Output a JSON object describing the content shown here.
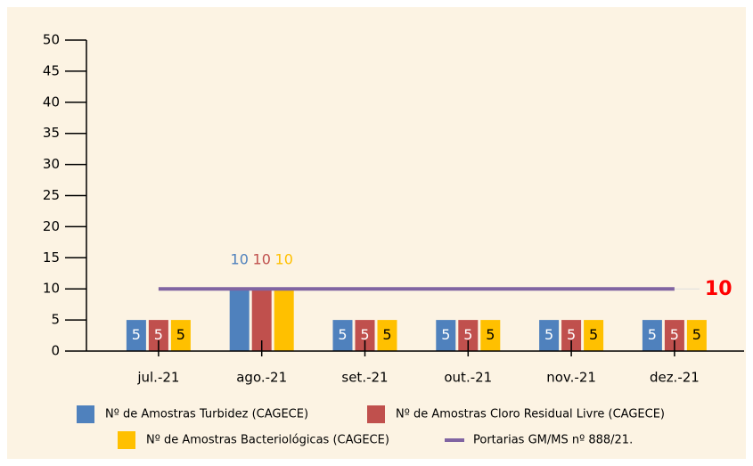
{
  "chart_data": {
    "type": "bar",
    "categories": [
      "jul.-21",
      "ago.-21",
      "set.-21",
      "out.-21",
      "nov.-21",
      "dez.-21"
    ],
    "series": [
      {
        "name": "Nº de Amostras Turbidez (CAGECE)",
        "color": "#4f81bd",
        "values": [
          5,
          10,
          5,
          5,
          5,
          5
        ]
      },
      {
        "name": "Nº de Amostras Cloro Residual Livre (CAGECE)",
        "color": "#c0504d",
        "values": [
          5,
          10,
          5,
          5,
          5,
          5
        ]
      },
      {
        "name": "Nº de Amostras Bacteriológicas (CAGECE)",
        "color": "#ffc000",
        "values": [
          5,
          10,
          5,
          5,
          5,
          5
        ]
      },
      {
        "name": "Portarias GM/MS nº 888/21.",
        "color": "#8064a2",
        "type": "line",
        "values": [
          10,
          10,
          10,
          10,
          10,
          10
        ]
      }
    ],
    "ylim": [
      0,
      50
    ],
    "yticks": [
      0,
      5,
      10,
      15,
      20,
      25,
      30,
      35,
      40,
      45,
      50
    ]
  }
}
